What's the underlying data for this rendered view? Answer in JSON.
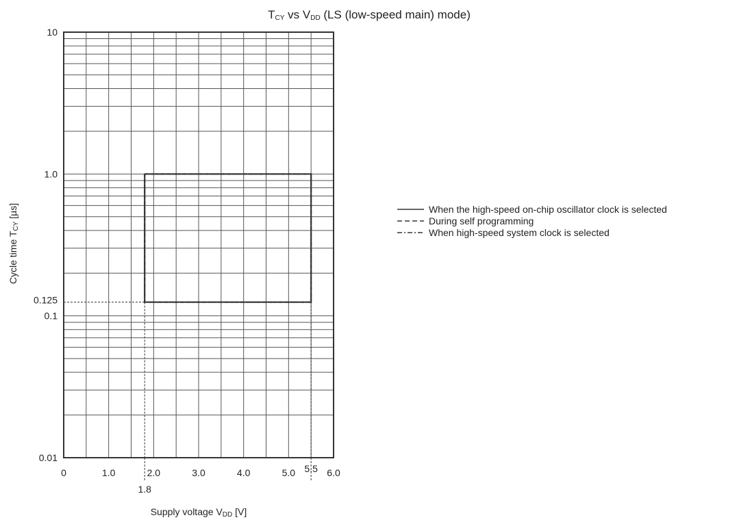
{
  "chart_data": {
    "type": "line",
    "title": {
      "main_a": "T",
      "sub_a": "CY",
      "main_b": " vs V",
      "sub_b": "DD",
      "main_c": " (LS (low-speed main) mode)"
    },
    "xlabel": {
      "main_a": "Supply voltage V",
      "sub_a": "DD",
      "main_b": " [V]"
    },
    "ylabel": {
      "main_a": "Cycle time T",
      "sub_a": "CY",
      "main_b": " [µs]"
    },
    "x_scale": "linear",
    "y_scale": "log",
    "xlim": [
      0,
      6.0
    ],
    "ylim": [
      0.01,
      10
    ],
    "grid": true,
    "x_ticks": [
      {
        "value": 0,
        "label": "0"
      },
      {
        "value": 1.0,
        "label": "1.0"
      },
      {
        "value": 2.0,
        "label": "2.0"
      },
      {
        "value": 3.0,
        "label": "3.0"
      },
      {
        "value": 4.0,
        "label": "4.0"
      },
      {
        "value": 5.0,
        "label": "5.0"
      },
      {
        "value": 6.0,
        "label": "6.0"
      }
    ],
    "x_extra_ticks": [
      {
        "value": 1.8,
        "label": "1.8"
      },
      {
        "value": 5.5,
        "label": "5.5"
      }
    ],
    "y_ticks": [
      {
        "value": 0.01,
        "label": "0.01"
      },
      {
        "value": 0.1,
        "label": "0.1"
      },
      {
        "value": 1.0,
        "label": "1.0"
      },
      {
        "value": 10,
        "label": "10"
      }
    ],
    "y_extra_ticks": [
      {
        "value": 0.125,
        "label": "0.125"
      }
    ],
    "series": [
      {
        "name": "When the high-speed on-chip oscillator clock is selected",
        "style": "solid",
        "x": [
          1.8,
          5.5,
          5.5,
          1.8,
          1.8
        ],
        "y": [
          1.0,
          1.0,
          0.125,
          0.125,
          1.0
        ]
      },
      {
        "name": "During self programming",
        "style": "dashed",
        "x": [
          1.8,
          5.5,
          5.5,
          1.8,
          1.8
        ],
        "y": [
          1.0,
          1.0,
          0.125,
          0.125,
          1.0
        ]
      },
      {
        "name": "When high-speed system clock is selected",
        "style": "dashdot",
        "x": [
          1.8,
          5.5,
          5.5,
          1.8,
          1.8
        ],
        "y": [
          1.0,
          1.0,
          0.125,
          0.125,
          1.0
        ]
      }
    ],
    "guide_lines": [
      {
        "axis": "x",
        "value": 1.8
      },
      {
        "axis": "x",
        "value": 5.5
      },
      {
        "axis": "y",
        "value": 0.125
      }
    ],
    "legend_position": "right",
    "colors": {
      "line": "#333333",
      "grid": "#555555",
      "frame": "#333333"
    }
  }
}
